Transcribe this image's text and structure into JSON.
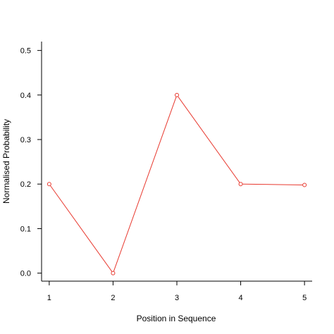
{
  "chart_data": {
    "type": "line",
    "xlabel": "Position in Sequence",
    "ylabel": "Normalised Probability",
    "x": [
      1,
      2,
      3,
      4,
      5
    ],
    "series": [
      {
        "values": [
          0.2,
          0.0,
          0.4,
          0.2,
          0.198
        ],
        "color": "#e8392f"
      }
    ],
    "xlim": [
      0.88,
      5.12
    ],
    "ylim": [
      -0.018,
      0.52
    ],
    "xticks": [
      1,
      2,
      3,
      4,
      5
    ],
    "xtick_labels": [
      "1",
      "2",
      "3",
      "4",
      "5"
    ],
    "yticks": [
      0.0,
      0.1,
      0.2,
      0.3,
      0.4,
      0.5
    ],
    "ytick_labels": [
      "0.0",
      "0.1",
      "0.2",
      "0.3",
      "0.4",
      "0.5"
    ],
    "grid": false,
    "marker": "open-circle",
    "axis_color": "#000000"
  }
}
